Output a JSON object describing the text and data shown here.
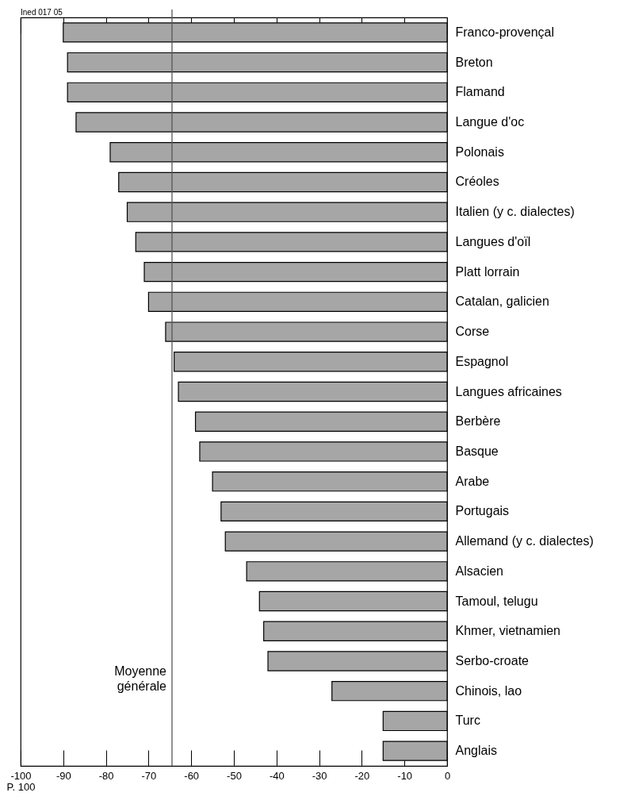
{
  "chart_data": {
    "type": "bar",
    "orientation": "horizontal",
    "xlabel": "P. 100",
    "annotations": [
      "Ined 017 05"
    ],
    "categories": [
      "Franco-provençal",
      "Breton",
      "Flamand",
      "Langue d'oc",
      "Polonais",
      "Créoles",
      "Italien (y c. dialectes)",
      "Langues d'oïl",
      "Platt lorrain",
      "Catalan, galicien",
      "Corse",
      "Espagnol",
      "Langues africaines",
      "Berbère",
      "Basque",
      "Arabe",
      "Portugais",
      "Allemand (y c. dialectes)",
      "Alsacien",
      "Tamoul, telugu",
      "Khmer, vietnamien",
      "Serbo-croate",
      "Chinois, lao",
      "Turc",
      "Anglais"
    ],
    "values": [
      -90,
      -89,
      -89,
      -87,
      -79,
      -77,
      -75,
      -73,
      -71,
      -70,
      -66,
      -64,
      -63,
      -59,
      -58,
      -55,
      -53,
      -52,
      -47,
      -44,
      -43,
      -42,
      -27,
      -15,
      -15
    ],
    "color": "#a6a6a6",
    "xlim": [
      -100,
      0
    ],
    "xticks": [
      -100,
      -90,
      -80,
      -70,
      -60,
      -50,
      -40,
      -30,
      -20,
      -10,
      0
    ],
    "ref_lines": [
      {
        "axis": "x",
        "value": -64.5,
        "label": "Moyenne générale",
        "color": "#555555"
      }
    ]
  }
}
